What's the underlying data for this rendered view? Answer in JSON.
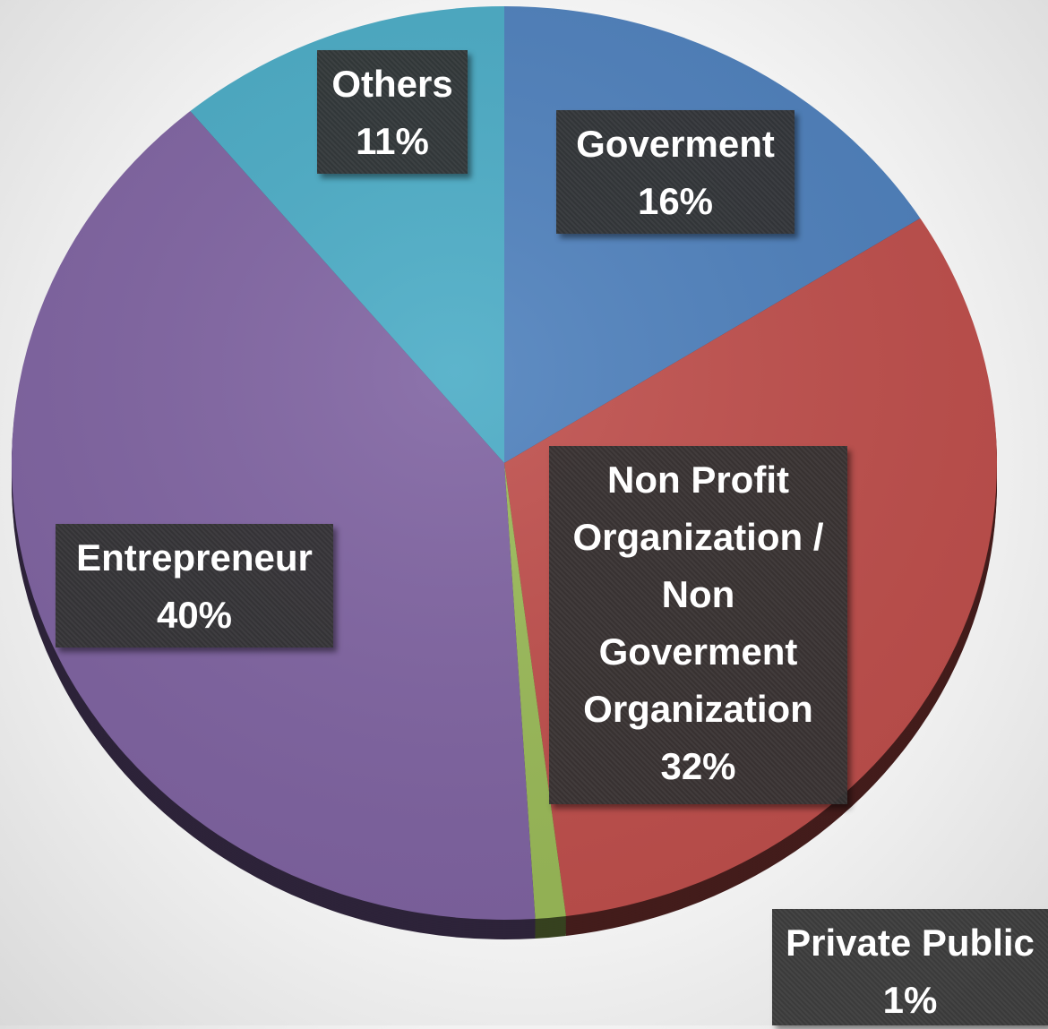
{
  "chart_data": {
    "type": "pie",
    "start_angle_deg": 0,
    "direction": "clockwise",
    "slices": [
      {
        "name": "Goverment",
        "label_lines": [
          "Goverment"
        ],
        "value": 16,
        "label_value": "16%",
        "color": "#4f81bd"
      },
      {
        "name": "Non Profit Organization / Non Goverment Organization",
        "label_lines": [
          "Non Profit",
          "Organization /",
          "Non",
          "Goverment",
          "Organization"
        ],
        "value": 32,
        "label_value": "32%",
        "color": "#c0504d"
      },
      {
        "name": "Private Public",
        "label_lines": [
          "Private Public"
        ],
        "value": 1,
        "label_value": "1%",
        "color": "#9bbb59"
      },
      {
        "name": "Entrepreneur",
        "label_lines": [
          "Entrepreneur"
        ],
        "value": 40,
        "label_value": "40%",
        "color": "#8064a2"
      },
      {
        "name": "Others",
        "label_lines": [
          "Others"
        ],
        "value": 11,
        "label_value": "11%",
        "color": "#4bacc6"
      }
    ]
  }
}
